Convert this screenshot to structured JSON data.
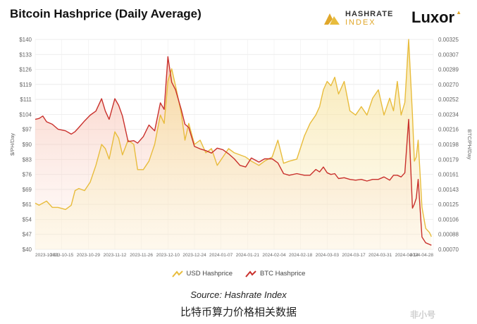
{
  "title": "Bitcoin Hashprice (Daily Average)",
  "brands": {
    "hashrate_main": "HASHRATE",
    "hashrate_sub": "INDEX",
    "luxor": "Luxor"
  },
  "source": "Source: Hashrate Index",
  "caption": "比特币算力价格相关数据",
  "watermark": "非小号",
  "colors": {
    "usd": "#e8bc3c",
    "btc": "#c9302c"
  },
  "chart_data": {
    "type": "line",
    "title": "Bitcoin Hashprice (Daily Average)",
    "ylabel_left": "$/PH/Day",
    "ylabel_right": "BTC/PH/Day",
    "left_ticks": [
      "$140",
      "$133",
      "$126",
      "$119",
      "$111",
      "$104",
      "$97",
      "$90",
      "$83",
      "$76",
      "$69",
      "$61",
      "$54",
      "$47",
      "$40"
    ],
    "right_ticks": [
      "0.00325",
      "0.00307",
      "0.00289",
      "0.00270",
      "0.00252",
      "0.00234",
      "0.00216",
      "0.00198",
      "0.00179",
      "0.00161",
      "0.00143",
      "0.00125",
      "0.00106",
      "0.00088",
      "0.00070"
    ],
    "ylim_left": [
      40,
      140
    ],
    "ylim_right": [
      0.0007,
      0.00325
    ],
    "x_tick_labels": [
      "2023-10-01",
      "2023-10-15",
      "2023-10-29",
      "2023-11-12",
      "2023-11-26",
      "2023-12-10",
      "2023-12-24",
      "2024-01-07",
      "2024-01-21",
      "2024-02-04",
      "2024-02-18",
      "2024-03-03",
      "2024-03-17",
      "2024-03-31",
      "2024-04-14",
      "2024-04-28"
    ],
    "grid": true,
    "legend_position": "bottom-center",
    "series": [
      {
        "name": "USD Hashprice",
        "axis": "left",
        "x": [
          "2023-10-01",
          "2023-10-03",
          "2023-10-05",
          "2023-10-07",
          "2023-10-10",
          "2023-10-13",
          "2023-10-17",
          "2023-10-20",
          "2023-10-22",
          "2023-10-24",
          "2023-10-27",
          "2023-10-30",
          "2023-11-02",
          "2023-11-05",
          "2023-11-07",
          "2023-11-09",
          "2023-11-12",
          "2023-11-14",
          "2023-11-16",
          "2023-11-19",
          "2023-11-22",
          "2023-11-24",
          "2023-11-27",
          "2023-11-30",
          "2023-12-03",
          "2023-12-06",
          "2023-12-08",
          "2023-12-10",
          "2023-12-12",
          "2023-12-14",
          "2023-12-17",
          "2023-12-19",
          "2023-12-21",
          "2023-12-24",
          "2023-12-27",
          "2023-12-30",
          "2024-01-02",
          "2024-01-05",
          "2024-01-08",
          "2024-01-11",
          "2024-01-14",
          "2024-01-17",
          "2024-01-20",
          "2024-01-23",
          "2024-01-27",
          "2024-01-30",
          "2024-02-03",
          "2024-02-06",
          "2024-02-09",
          "2024-02-12",
          "2024-02-16",
          "2024-02-20",
          "2024-02-23",
          "2024-02-26",
          "2024-02-28",
          "2024-03-01",
          "2024-03-03",
          "2024-03-05",
          "2024-03-07",
          "2024-03-09",
          "2024-03-12",
          "2024-03-15",
          "2024-03-18",
          "2024-03-21",
          "2024-03-24",
          "2024-03-27",
          "2024-03-30",
          "2024-04-02",
          "2024-04-05",
          "2024-04-07",
          "2024-04-09",
          "2024-04-11",
          "2024-04-13",
          "2024-04-15",
          "2024-04-17",
          "2024-04-18",
          "2024-04-19",
          "2024-04-20",
          "2024-04-22",
          "2024-04-24",
          "2024-04-26",
          "2024-04-27"
        ],
        "values": [
          62,
          61,
          62,
          63,
          60,
          60,
          59,
          61,
          68,
          69,
          68,
          72,
          80,
          90,
          88,
          83,
          96,
          93,
          85,
          92,
          90,
          78,
          78,
          82,
          90,
          104,
          100,
          120,
          126,
          118,
          105,
          92,
          100,
          90,
          92,
          86,
          88,
          80,
          84,
          88,
          86,
          85,
          84,
          82,
          80,
          82,
          84,
          92,
          81,
          82,
          83,
          94,
          100,
          104,
          108,
          116,
          120,
          118,
          122,
          114,
          120,
          106,
          104,
          108,
          104,
          112,
          116,
          104,
          112,
          106,
          120,
          104,
          110,
          140,
          104,
          82,
          84,
          92,
          60,
          50,
          48,
          46
        ]
      },
      {
        "name": "BTC Hashprice",
        "axis": "right",
        "x": [
          "2023-10-01",
          "2023-10-03",
          "2023-10-05",
          "2023-10-07",
          "2023-10-10",
          "2023-10-13",
          "2023-10-17",
          "2023-10-20",
          "2023-10-22",
          "2023-10-24",
          "2023-10-27",
          "2023-10-30",
          "2023-11-02",
          "2023-11-05",
          "2023-11-07",
          "2023-11-09",
          "2023-11-12",
          "2023-11-14",
          "2023-11-16",
          "2023-11-19",
          "2023-11-22",
          "2023-11-24",
          "2023-11-27",
          "2023-11-30",
          "2023-12-03",
          "2023-12-06",
          "2023-12-08",
          "2023-12-10",
          "2023-12-12",
          "2023-12-14",
          "2023-12-17",
          "2023-12-19",
          "2023-12-21",
          "2023-12-24",
          "2023-12-27",
          "2023-12-30",
          "2024-01-02",
          "2024-01-05",
          "2024-01-08",
          "2024-01-11",
          "2024-01-14",
          "2024-01-17",
          "2024-01-20",
          "2024-01-23",
          "2024-01-27",
          "2024-01-30",
          "2024-02-03",
          "2024-02-06",
          "2024-02-09",
          "2024-02-12",
          "2024-02-16",
          "2024-02-20",
          "2024-02-23",
          "2024-02-26",
          "2024-02-28",
          "2024-03-01",
          "2024-03-03",
          "2024-03-05",
          "2024-03-07",
          "2024-03-09",
          "2024-03-12",
          "2024-03-15",
          "2024-03-18",
          "2024-03-21",
          "2024-03-24",
          "2024-03-27",
          "2024-03-30",
          "2024-04-02",
          "2024-04-05",
          "2024-04-07",
          "2024-04-09",
          "2024-04-11",
          "2024-04-13",
          "2024-04-15",
          "2024-04-17",
          "2024-04-18",
          "2024-04-19",
          "2024-04-20",
          "2024-04-22",
          "2024-04-24",
          "2024-04-26",
          "2024-04-27"
        ],
        "values": [
          0.00228,
          0.00229,
          0.00232,
          0.00225,
          0.00222,
          0.00216,
          0.00214,
          0.0021,
          0.00213,
          0.00218,
          0.00226,
          0.00233,
          0.00238,
          0.00253,
          0.00238,
          0.00228,
          0.00253,
          0.00245,
          0.00232,
          0.00201,
          0.00202,
          0.00199,
          0.00207,
          0.00221,
          0.00214,
          0.00248,
          0.0024,
          0.00304,
          0.00273,
          0.00264,
          0.0024,
          0.00222,
          0.00218,
          0.00195,
          0.00192,
          0.0019,
          0.00187,
          0.00193,
          0.00191,
          0.00186,
          0.0018,
          0.00172,
          0.0017,
          0.00181,
          0.00176,
          0.0018,
          0.0018,
          0.00175,
          0.00162,
          0.0016,
          0.00162,
          0.0016,
          0.0016,
          0.00167,
          0.00164,
          0.0017,
          0.00163,
          0.00161,
          0.00162,
          0.00156,
          0.00157,
          0.00155,
          0.00154,
          0.00155,
          0.00153,
          0.00155,
          0.00155,
          0.00158,
          0.00154,
          0.0016,
          0.0016,
          0.00158,
          0.00163,
          0.00228,
          0.0012,
          0.00125,
          0.00132,
          0.00155,
          0.00085,
          0.00078,
          0.00076,
          0.00075
        ]
      }
    ]
  }
}
